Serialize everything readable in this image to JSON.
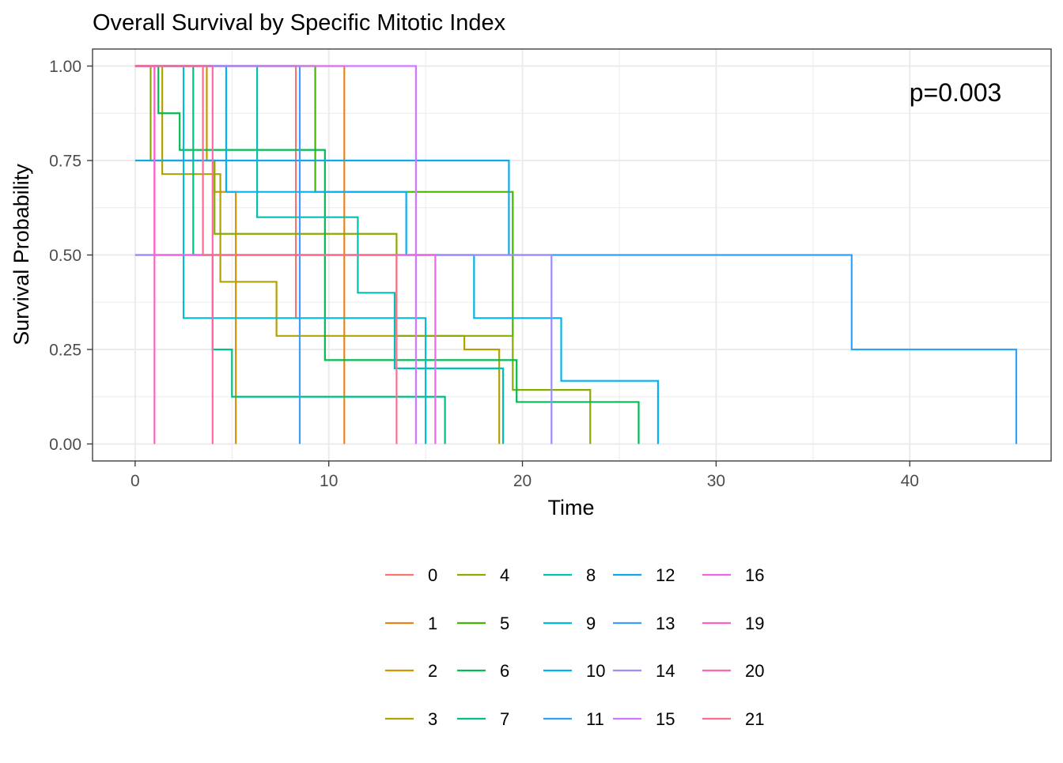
{
  "chart_data": {
    "type": "line",
    "title": "Overall Survival by Specific Mitotic Index",
    "xlabel": "Time",
    "ylabel": "Survival Probability",
    "xlim": [
      -2.2,
      47.3
    ],
    "ylim": [
      -0.045,
      1.045
    ],
    "xticks": [
      0,
      10,
      20,
      30,
      40
    ],
    "xtick_labels": [
      "0",
      "10",
      "20",
      "30",
      "40"
    ],
    "yticks": [
      0,
      0.25,
      0.5,
      0.75,
      1.0
    ],
    "ytick_labels": [
      "0.00",
      "0.25",
      "0.50",
      "0.75",
      "1.00"
    ],
    "annotation": "p=0.003",
    "grid": true,
    "legend_position": "bottom",
    "series": [
      {
        "name": "0",
        "color": "#F8766D",
        "x": [
          0,
          8.3
        ],
        "y": [
          1.0,
          0.333
        ]
      },
      {
        "name": "1",
        "color": "#E7851E",
        "x": [
          0,
          10.8
        ],
        "y": [
          1.0,
          0
        ]
      },
      {
        "name": "2",
        "color": "#D09400",
        "x": [
          0,
          3.7,
          4.1,
          5.2,
          5.2
        ],
        "y": [
          1.0,
          0.75,
          0.667,
          0.5,
          0
        ]
      },
      {
        "name": "3",
        "color": "#B2A100",
        "x": [
          0,
          1.4,
          4.4,
          7.3,
          17.0,
          18.8
        ],
        "y": [
          1.0,
          0.714,
          0.429,
          0.286,
          0.25,
          0
        ]
      },
      {
        "name": "4",
        "color": "#89AC00",
        "x": [
          0,
          0.8,
          4.1,
          13.5,
          19.5,
          23.5
        ],
        "y": [
          1.0,
          0.75,
          0.556,
          0.286,
          0.143,
          0
        ]
      },
      {
        "name": "5",
        "color": "#45B500",
        "x": [
          0,
          9.3,
          19.5,
          19.5
        ],
        "y": [
          1.0,
          0.667,
          0.286,
          0.286
        ]
      },
      {
        "name": "6",
        "color": "#00BC51",
        "x": [
          0,
          1.2,
          2.3,
          9.8,
          19.7,
          26.0
        ],
        "y": [
          1.0,
          0.875,
          0.778,
          0.222,
          0.111,
          0
        ]
      },
      {
        "name": "7",
        "color": "#00C087",
        "x": [
          0,
          3.0,
          4.0,
          5.0,
          16.0
        ],
        "y": [
          1.0,
          0.5,
          0.25,
          0.125,
          0
        ]
      },
      {
        "name": "8",
        "color": "#00C0B2",
        "x": [
          0,
          6.3,
          11.5,
          13.4,
          19.0
        ],
        "y": [
          1.0,
          0.6,
          0.4,
          0.2,
          0
        ]
      },
      {
        "name": "9",
        "color": "#00BCD6",
        "x": [
          0,
          2.5,
          15.0
        ],
        "y": [
          1.0,
          0.333,
          0
        ]
      },
      {
        "name": "10",
        "color": "#00B3F2",
        "x": [
          0,
          4.7,
          14.0,
          17.5,
          22.0,
          27.0
        ],
        "y": [
          1.0,
          0.667,
          0.5,
          0.333,
          0.167,
          0
        ]
      },
      {
        "name": "11",
        "color": "#29A3FF",
        "x": [
          0,
          37.0,
          45.5
        ],
        "y": [
          0.5,
          0.25,
          0
        ]
      },
      {
        "name": "12",
        "color": "#11A7EA",
        "x": [
          0,
          19.3
        ],
        "y": [
          0.75,
          0.5
        ]
      },
      {
        "name": "13",
        "color": "#3F9DFF",
        "x": [
          0,
          8.5
        ],
        "y": [
          1.0,
          0
        ]
      },
      {
        "name": "14",
        "color": "#9C8DFF",
        "x": [
          0,
          21.5
        ],
        "y": [
          0.5,
          0
        ]
      },
      {
        "name": "15",
        "color": "#D277FF",
        "x": [
          0,
          14.5,
          14.5
        ],
        "y": [
          1.0,
          0.5,
          0
        ]
      },
      {
        "name": "16",
        "color": "#F166E9",
        "x": [
          0,
          1.0,
          5.8,
          15.5
        ],
        "y": [
          1.0,
          0.5,
          0.5,
          0
        ]
      },
      {
        "name": "19",
        "color": "#FF61C7",
        "x": [
          0,
          1.0
        ],
        "y": [
          1.0,
          0
        ]
      },
      {
        "name": "20",
        "color": "#FF65AE",
        "x": [
          0,
          4.0
        ],
        "y": [
          1.0,
          0
        ]
      },
      {
        "name": "21",
        "color": "#FF6C91",
        "x": [
          0,
          3.5,
          13.5
        ],
        "y": [
          1.0,
          0.5,
          0
        ]
      }
    ]
  }
}
